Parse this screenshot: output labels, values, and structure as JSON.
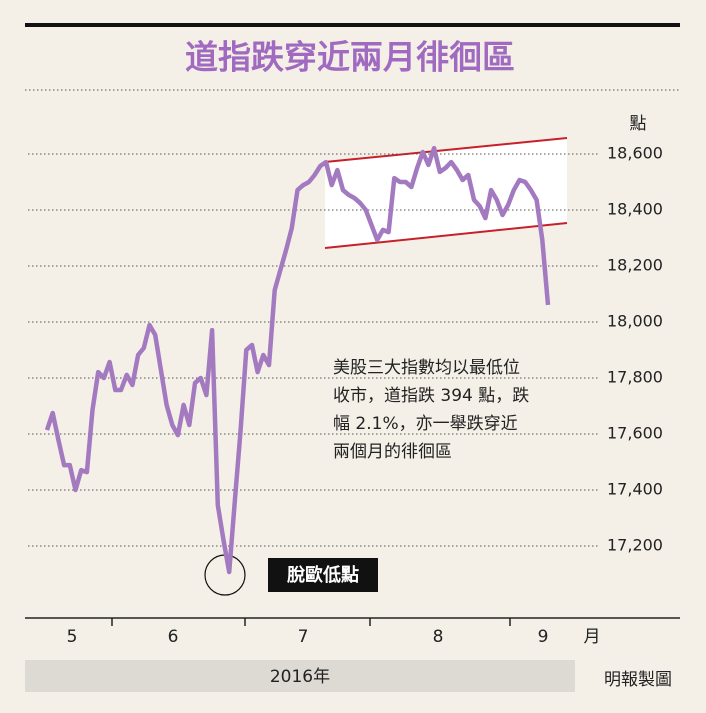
{
  "chart_data": {
    "type": "line",
    "title": "道指跌穿近兩月徘徊區",
    "y_unit": "點",
    "color": "#a37ac0",
    "values": [
      17614,
      17675,
      17579,
      17489,
      17489,
      17400,
      17471,
      17464,
      17686,
      17821,
      17800,
      17857,
      17757,
      17757,
      17811,
      17775,
      17882,
      17907,
      17989,
      17954,
      17829,
      17704,
      17632,
      17596,
      17704,
      17632,
      17782,
      17800,
      17739,
      17971,
      17346,
      17221,
      17107,
      17364,
      17614,
      17900,
      17918,
      17821,
      17882,
      17846,
      18114,
      18186,
      18257,
      18336,
      18471,
      18489,
      18500,
      18525,
      18557,
      18571,
      18489,
      18543,
      18471,
      18454,
      18443,
      18425,
      18400,
      18346,
      18293,
      18329,
      18321,
      18514,
      18500,
      18500,
      18482,
      18550,
      18607,
      18561,
      18621,
      18536,
      18550,
      18571,
      18543,
      18507,
      18525,
      18436,
      18414,
      18371,
      18471,
      18436,
      18382,
      18418,
      18471,
      18507,
      18500,
      18471,
      18436,
      18293,
      18061
    ],
    "ylim": [
      16950,
      18800
    ],
    "yticks": [
      {
        "value": 17200,
        "label": "17,200"
      },
      {
        "value": 17400,
        "label": "17,400"
      },
      {
        "value": 17600,
        "label": "17,600"
      },
      {
        "value": 17800,
        "label": "17,800"
      },
      {
        "value": 18000,
        "label": "18,000"
      },
      {
        "value": 18200,
        "label": "18,200"
      },
      {
        "value": 18400,
        "label": "18,400"
      },
      {
        "value": 18600,
        "label": "18,600"
      }
    ],
    "grid": true,
    "months": [
      "5",
      "6",
      "7",
      "8",
      "9"
    ],
    "month_unit": "月",
    "year_label": "2016年",
    "annotation_lines": [
      "美股三大指數均以最低位",
      "收市，道指跌 394 點，跌",
      "幅 2.1%，亦一舉跌穿近",
      "兩個月的徘徊區"
    ],
    "low_label": "脫歐低點",
    "credit": "明報製圖"
  }
}
